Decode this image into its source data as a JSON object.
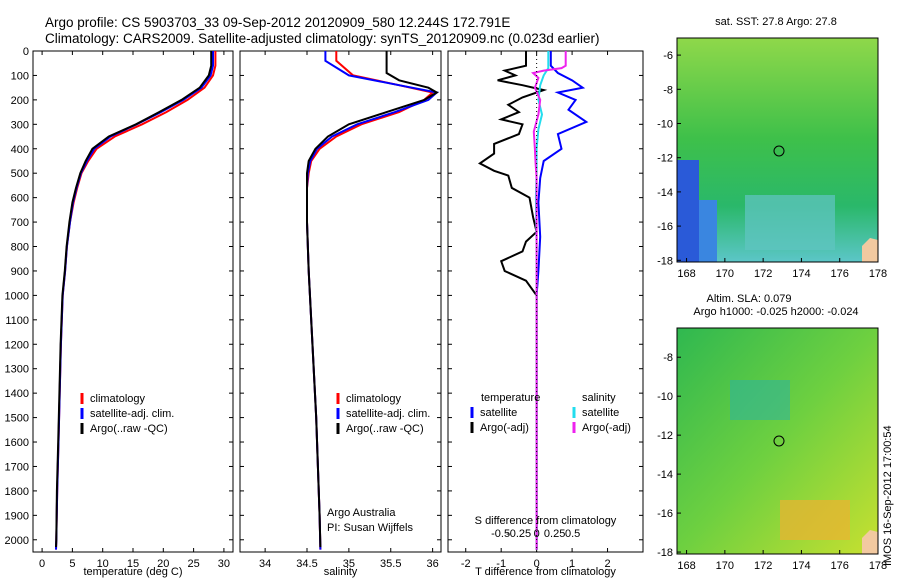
{
  "header": {
    "line1": "Argo profile: CS 5903703_33 09-Sep-2012 20120909_580 12.244S 172.791E",
    "line2": "Climatology: CARS2009. Satellite-adjusted climatology: synTS_20120909.nc (0.023d earlier)"
  },
  "colors": {
    "climatology": "#ff0000",
    "satellite": "#0000ff",
    "argo": "#000000",
    "sal_satellite": "#22ddee",
    "sal_argo": "#ee22ee"
  },
  "footnote": {
    "line1": "Argo Australia",
    "line2": "PI: Susan Wijffels",
    "stamp": "IMOS 16-Sep-2012 17:00:54"
  },
  "chart_data": [
    {
      "type": "line",
      "panel": "temperature",
      "xlabel": "temperature (deg C)",
      "ylabel": "",
      "xlim": [
        -1.5,
        31.5
      ],
      "ylim": [
        2050,
        0
      ],
      "xticks": [
        0,
        5,
        10,
        15,
        20,
        25,
        30
      ],
      "yticks": [
        0,
        100,
        200,
        300,
        400,
        500,
        600,
        700,
        800,
        900,
        1000,
        1100,
        1200,
        1300,
        1400,
        1500,
        1600,
        1700,
        1800,
        1900,
        2000
      ],
      "legend": [
        "climatology",
        "satellite-adj. clim.",
        "Argo(..raw -QC)"
      ],
      "series": [
        {
          "name": "climatology",
          "color": "#ff0000",
          "points": [
            [
              28.6,
              0
            ],
            [
              28.6,
              60
            ],
            [
              28.2,
              100
            ],
            [
              26.8,
              150
            ],
            [
              24,
              200
            ],
            [
              20.5,
              250
            ],
            [
              16.5,
              300
            ],
            [
              12,
              350
            ],
            [
              9,
              400
            ],
            [
              7.6,
              450
            ],
            [
              6.5,
              500
            ],
            [
              5.8,
              560
            ],
            [
              5.2,
              620
            ],
            [
              4.6,
              700
            ],
            [
              4.1,
              800
            ],
            [
              3.8,
              900
            ],
            [
              3.4,
              1000
            ],
            [
              3.1,
              1200
            ],
            [
              2.9,
              1400
            ],
            [
              2.7,
              1600
            ],
            [
              2.5,
              1800
            ],
            [
              2.35,
              2000
            ],
            [
              2.3,
              2040
            ]
          ]
        },
        {
          "name": "satellite-adj. clim.",
          "color": "#0000ff",
          "points": [
            [
              28.2,
              0
            ],
            [
              28.2,
              60
            ],
            [
              27.8,
              100
            ],
            [
              26.3,
              150
            ],
            [
              23.3,
              200
            ],
            [
              19.6,
              250
            ],
            [
              15.6,
              300
            ],
            [
              11.3,
              350
            ],
            [
              8.6,
              400
            ],
            [
              7.4,
              450
            ],
            [
              6.4,
              500
            ],
            [
              5.7,
              560
            ],
            [
              5.1,
              620
            ],
            [
              4.6,
              700
            ],
            [
              4.1,
              800
            ],
            [
              3.8,
              900
            ],
            [
              3.4,
              1000
            ],
            [
              3.1,
              1200
            ],
            [
              2.9,
              1400
            ],
            [
              2.7,
              1600
            ],
            [
              2.5,
              1800
            ],
            [
              2.35,
              2000
            ],
            [
              2.3,
              2040
            ]
          ]
        },
        {
          "name": "Argo(..raw -QC)",
          "color": "#000000",
          "points": [
            [
              27.9,
              0
            ],
            [
              27.9,
              60
            ],
            [
              27.5,
              100
            ],
            [
              26,
              150
            ],
            [
              23,
              200
            ],
            [
              19.3,
              250
            ],
            [
              15.5,
              300
            ],
            [
              11,
              350
            ],
            [
              8.3,
              400
            ],
            [
              7.2,
              450
            ],
            [
              6.3,
              500
            ],
            [
              5.6,
              560
            ],
            [
              5,
              620
            ],
            [
              4.5,
              700
            ],
            [
              4.05,
              800
            ],
            [
              3.75,
              900
            ],
            [
              3.35,
              1000
            ],
            [
              3.05,
              1200
            ],
            [
              2.85,
              1400
            ],
            [
              2.65,
              1600
            ],
            [
              2.45,
              1800
            ],
            [
              2.35,
              2000
            ],
            [
              2.3,
              2030
            ]
          ]
        }
      ]
    },
    {
      "type": "line",
      "panel": "salinity",
      "xlabel": "salinity",
      "ylabel": "",
      "xlim": [
        33.7,
        36.1
      ],
      "ylim": [
        2050,
        0
      ],
      "xticks": [
        34,
        34.5,
        35,
        35.5,
        36
      ],
      "legend": [
        "climatology",
        "satellite-adj. clim.",
        "Argo(..raw -QC)"
      ],
      "series": [
        {
          "name": "climatology",
          "color": "#ff0000",
          "points": [
            [
              34.85,
              0
            ],
            [
              34.85,
              40
            ],
            [
              35.05,
              100
            ],
            [
              35.6,
              140
            ],
            [
              36,
              170
            ],
            [
              35.9,
              200
            ],
            [
              35.6,
              250
            ],
            [
              35.15,
              300
            ],
            [
              34.85,
              350
            ],
            [
              34.65,
              400
            ],
            [
              34.55,
              450
            ],
            [
              34.52,
              500
            ],
            [
              34.5,
              560
            ],
            [
              34.5,
              700
            ],
            [
              34.52,
              900
            ],
            [
              34.55,
              1100
            ],
            [
              34.58,
              1300
            ],
            [
              34.61,
              1500
            ],
            [
              34.63,
              1700
            ],
            [
              34.65,
              1900
            ],
            [
              34.66,
              2040
            ]
          ]
        },
        {
          "name": "satellite-adj. clim.",
          "color": "#0000ff",
          "points": [
            [
              34.72,
              0
            ],
            [
              34.72,
              40
            ],
            [
              35.0,
              100
            ],
            [
              35.6,
              140
            ],
            [
              36.05,
              170
            ],
            [
              35.95,
              200
            ],
            [
              35.55,
              250
            ],
            [
              35.1,
              300
            ],
            [
              34.8,
              350
            ],
            [
              34.62,
              400
            ],
            [
              34.54,
              450
            ],
            [
              34.51,
              500
            ],
            [
              34.5,
              560
            ],
            [
              34.5,
              700
            ],
            [
              34.52,
              900
            ],
            [
              34.55,
              1100
            ],
            [
              34.58,
              1300
            ],
            [
              34.61,
              1500
            ],
            [
              34.63,
              1700
            ],
            [
              34.65,
              1900
            ],
            [
              34.66,
              2040
            ]
          ]
        },
        {
          "name": "Argo(..raw -QC)",
          "color": "#000000",
          "points": [
            [
              35.45,
              0
            ],
            [
              35.45,
              90
            ],
            [
              35.6,
              120
            ],
            [
              35.95,
              150
            ],
            [
              36.05,
              170
            ],
            [
              35.9,
              200
            ],
            [
              35.45,
              250
            ],
            [
              35.0,
              300
            ],
            [
              34.75,
              350
            ],
            [
              34.6,
              400
            ],
            [
              34.52,
              450
            ],
            [
              34.5,
              500
            ],
            [
              34.5,
              560
            ],
            [
              34.5,
              700
            ],
            [
              34.52,
              900
            ],
            [
              34.55,
              1100
            ],
            [
              34.58,
              1300
            ],
            [
              34.61,
              1500
            ],
            [
              34.63,
              1700
            ],
            [
              34.65,
              1900
            ],
            [
              34.66,
              2030
            ]
          ]
        }
      ]
    },
    {
      "type": "line",
      "panel": "difference",
      "xlabel": "T difference from climatology",
      "xlabel_top": "S difference from climatology",
      "xlim": [
        -2.5,
        3
      ],
      "ylim": [
        2050,
        0
      ],
      "xticks": [
        -2,
        -1,
        0,
        1,
        2
      ],
      "sticks": [
        -0.5,
        -0.25,
        0,
        0.25,
        0.5
      ],
      "sticks_labels": [
        "-0.5",
        "-0.25",
        "0",
        "0.25",
        "0.5"
      ],
      "legend_titles": [
        "temperature",
        "salinity"
      ],
      "legend": [
        "satellite",
        "Argo(-adj)",
        "satellite",
        "Argo(-adj)"
      ],
      "series": [
        {
          "name": "satellite",
          "color": "#0000ff",
          "points": [
            [
              0.4,
              0
            ],
            [
              0.4,
              60
            ],
            [
              0.6,
              90
            ],
            [
              1.0,
              120
            ],
            [
              1.3,
              150
            ],
            [
              0.6,
              170
            ],
            [
              1.1,
              200
            ],
            [
              0.9,
              240
            ],
            [
              1.4,
              290
            ],
            [
              0.6,
              340
            ],
            [
              0.7,
              400
            ],
            [
              0.2,
              450
            ],
            [
              0.1,
              520
            ],
            [
              0.05,
              620
            ],
            [
              0.1,
              760
            ],
            [
              0.05,
              900
            ],
            [
              0.0,
              1000
            ],
            [
              0.0,
              2040
            ]
          ]
        },
        {
          "name": "Argo(-adj)",
          "color": "#000000",
          "points": [
            [
              -0.3,
              0
            ],
            [
              -0.3,
              60
            ],
            [
              -0.9,
              80
            ],
            [
              -0.6,
              100
            ],
            [
              -1.1,
              120
            ],
            [
              -0.4,
              140
            ],
            [
              0.2,
              160
            ],
            [
              -0.4,
              190
            ],
            [
              -0.8,
              220
            ],
            [
              -0.5,
              250
            ],
            [
              -1.0,
              280
            ],
            [
              -0.4,
              300
            ],
            [
              -0.5,
              340
            ],
            [
              -1.2,
              380
            ],
            [
              -1.2,
              420
            ],
            [
              -1.6,
              460
            ],
            [
              -1.2,
              490
            ],
            [
              -0.8,
              510
            ],
            [
              -0.7,
              560
            ],
            [
              -0.2,
              600
            ],
            [
              -0.1,
              680
            ],
            [
              0.0,
              740
            ],
            [
              -0.3,
              780
            ],
            [
              -0.4,
              820
            ],
            [
              -1.0,
              860
            ],
            [
              -0.9,
              900
            ],
            [
              -0.3,
              940
            ],
            [
              0.0,
              1000
            ],
            [
              0.0,
              2040
            ]
          ]
        },
        {
          "name": "satellite",
          "color": "#22ddee",
          "points": [
            [
              0.33,
              0
            ],
            [
              0.33,
              70
            ],
            [
              0.2,
              100
            ],
            [
              0.1,
              140
            ],
            [
              0.05,
              200
            ],
            [
              0.15,
              260
            ],
            [
              0.05,
              320
            ],
            [
              0.0,
              400
            ],
            [
              0.0,
              500
            ],
            [
              -0.02,
              600
            ],
            [
              0.0,
              800
            ],
            [
              0.0,
              2040
            ]
          ]
        },
        {
          "name": "Argo(-adj)",
          "color": "#ee22ee",
          "points": [
            [
              0.82,
              0
            ],
            [
              0.82,
              60
            ],
            [
              0.7,
              70
            ],
            [
              0.2,
              80
            ],
            [
              -0.1,
              90
            ],
            [
              0.05,
              110
            ],
            [
              -0.05,
              150
            ],
            [
              0.1,
              200
            ],
            [
              0.05,
              260
            ],
            [
              -0.08,
              330
            ],
            [
              -0.05,
              400
            ],
            [
              -0.03,
              460
            ],
            [
              0.0,
              520
            ],
            [
              0.0,
              800
            ],
            [
              0.0,
              2040
            ]
          ]
        }
      ]
    },
    {
      "type": "heatmap",
      "panel": "sst-map",
      "title": "sat. SST: 27.8 Argo: 27.8",
      "xlim": [
        167.5,
        178
      ],
      "ylim": [
        -18.1,
        -5
      ],
      "xticks": [
        168,
        170,
        172,
        174,
        176,
        178
      ],
      "yticks": [
        -6,
        -8,
        -10,
        -12,
        -14,
        -16,
        -18
      ],
      "marker": {
        "lon": 172.791,
        "lat": -12.244
      }
    },
    {
      "type": "heatmap",
      "panel": "sla-map",
      "title": "Altim. SLA: 0.079",
      "subtitle": "Argo h1000: -0.025 h2000: -0.024",
      "xlim": [
        167.5,
        178
      ],
      "ylim": [
        -18.1,
        -6.5
      ],
      "xticks": [
        168,
        170,
        172,
        174,
        176,
        178
      ],
      "yticks": [
        -8,
        -10,
        -12,
        -14,
        -16,
        -18
      ],
      "marker": {
        "lon": 172.791,
        "lat": -12.244
      }
    }
  ]
}
